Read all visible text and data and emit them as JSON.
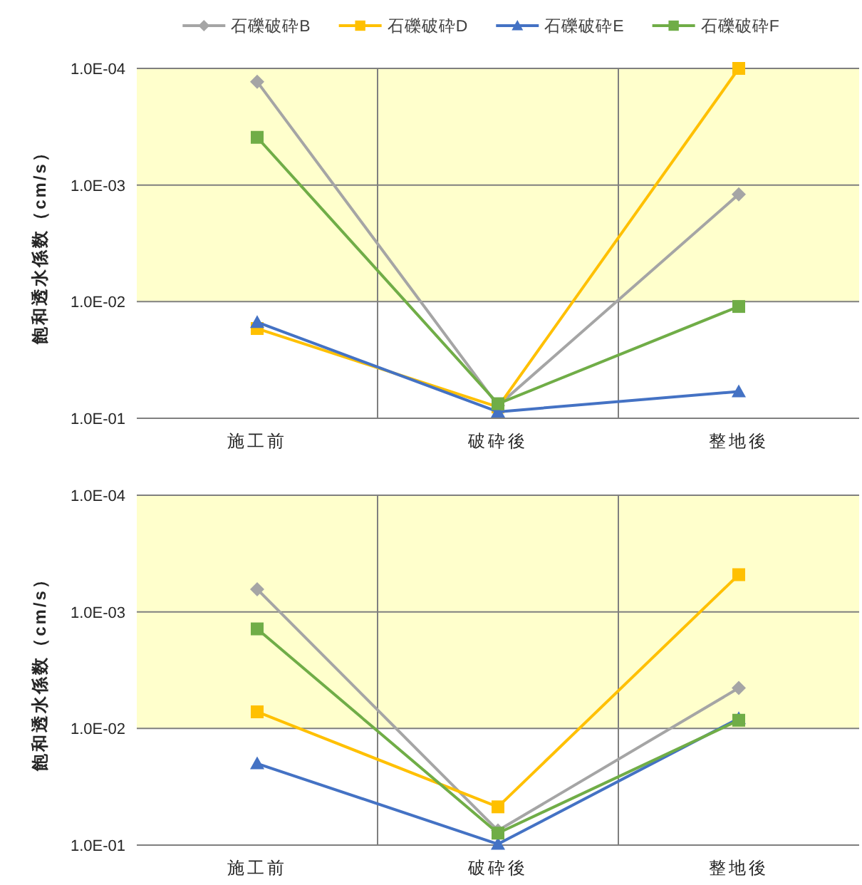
{
  "chart_data": [
    {
      "type": "line",
      "categories": [
        "施工前",
        "破砕後",
        "整地後"
      ],
      "ylabel": "飽和透水係数（cm/s）",
      "log": true,
      "ylim": [
        0.1,
        0.0001
      ],
      "yticks": [
        {
          "value": 0.1,
          "label": "1.0E-01"
        },
        {
          "value": 0.01,
          "label": "1.0E-02"
        },
        {
          "value": 0.001,
          "label": "1.0E-03"
        },
        {
          "value": 0.0001,
          "label": "1.0E-04"
        }
      ],
      "grid": true,
      "legend": "top",
      "bands": [
        {
          "axis": "y",
          "from": 0.01,
          "to": 0.0001,
          "color": "#ffffcc"
        }
      ],
      "series": [
        {
          "name": "石礫破砕B",
          "color": "#a5a5a5",
          "marker": "diamond",
          "values": [
            0.00013,
            0.078,
            0.0012
          ]
        },
        {
          "name": "石礫破砕D",
          "color": "#ffc000",
          "marker": "square",
          "values": [
            0.017,
            0.08,
            0.0001
          ]
        },
        {
          "name": "石礫破砕E",
          "color": "#4472c4",
          "marker": "triangle",
          "values": [
            0.015,
            0.088,
            0.059
          ]
        },
        {
          "name": "石礫破砕F",
          "color": "#70ad47",
          "marker": "square",
          "values": [
            0.00039,
            0.075,
            0.011
          ]
        }
      ]
    },
    {
      "type": "line",
      "categories": [
        "施工前",
        "破砕後",
        "整地後"
      ],
      "ylabel": "飽和透水係数（cm/s）",
      "log": true,
      "ylim": [
        0.1,
        0.0001
      ],
      "yticks": [
        {
          "value": 0.1,
          "label": "1.0E-01"
        },
        {
          "value": 0.01,
          "label": "1.0E-02"
        },
        {
          "value": 0.001,
          "label": "1.0E-03"
        },
        {
          "value": 0.0001,
          "label": "1.0E-04"
        }
      ],
      "grid": true,
      "bands": [
        {
          "axis": "y",
          "from": 0.01,
          "to": 0.0001,
          "color": "#ffffcc"
        }
      ],
      "series": [
        {
          "color": "#a5a5a5",
          "marker": "diamond",
          "values": [
            0.00064,
            0.075,
            0.0045
          ]
        },
        {
          "color": "#ffc000",
          "marker": "square",
          "values": [
            0.0072,
            0.047,
            0.00048
          ]
        },
        {
          "color": "#4472c4",
          "marker": "triangle",
          "values": [
            0.02,
            0.098,
            0.0082
          ]
        },
        {
          "color": "#70ad47",
          "marker": "square",
          "values": [
            0.0014,
            0.079,
            0.0085
          ]
        }
      ]
    }
  ]
}
